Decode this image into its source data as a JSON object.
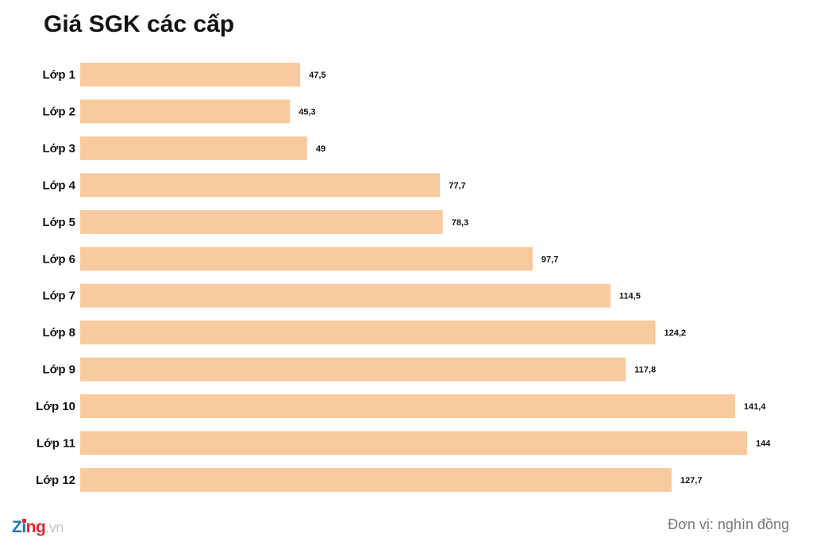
{
  "title": "Giá SGK các cấp",
  "unit_note": "Đơn vị: nghìn đồng",
  "logo": {
    "z": "Z",
    "i": "i",
    "ng": "ng",
    "vn": ".vn"
  },
  "colors": {
    "bar": "#f7cb9f",
    "text": "#111111",
    "note": "#777777",
    "logo_blue": "#1e73be",
    "logo_red": "#e8262d"
  },
  "chart_data": {
    "type": "bar",
    "orientation": "horizontal",
    "title": "Giá SGK các cấp",
    "categories": [
      "Lớp 1",
      "Lớp 2",
      "Lớp 3",
      "Lớp 4",
      "Lớp 5",
      "Lớp 6",
      "Lớp 7",
      "Lớp 8",
      "Lớp 9",
      "Lớp 10",
      "Lớp 11",
      "Lớp 12"
    ],
    "values": [
      47.5,
      45.3,
      49,
      77.7,
      78.3,
      97.7,
      114.5,
      124.2,
      117.8,
      141.4,
      144,
      127.7
    ],
    "value_labels": [
      "47,5",
      "45,3",
      "49",
      "77,7",
      "78,3",
      "97,7",
      "114,5",
      "124,2",
      "117,8",
      "141,4",
      "144",
      "127,7"
    ],
    "xlim": [
      0,
      144
    ],
    "grid": false,
    "legend": "none"
  }
}
